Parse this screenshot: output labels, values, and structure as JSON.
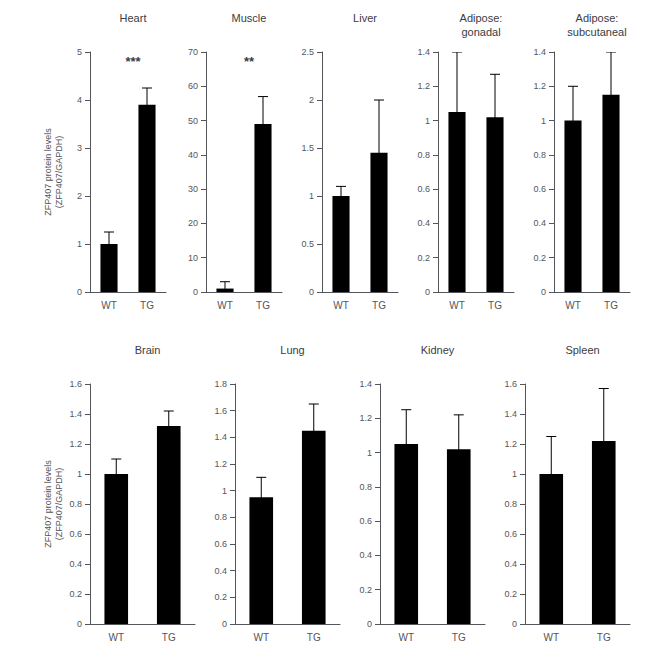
{
  "chart_data": [
    {
      "type": "bar",
      "title": "Heart",
      "categories": [
        "WT",
        "TG"
      ],
      "values": [
        1.0,
        3.9
      ],
      "errors": [
        0.25,
        0.35
      ],
      "ylim": [
        0,
        5
      ],
      "yticks": [
        0,
        1,
        2,
        3,
        4,
        5
      ],
      "color": "#000000",
      "grid": false,
      "annotation": "***",
      "ylabel": "ZFP407 protein levels\n(ZFP407/GAPDH)"
    },
    {
      "type": "bar",
      "title": "Muscle",
      "categories": [
        "WT",
        "TG"
      ],
      "values": [
        1.0,
        49.0
      ],
      "errors": [
        2.0,
        8.0
      ],
      "ylim": [
        0,
        70
      ],
      "yticks": [
        0,
        10,
        20,
        30,
        40,
        50,
        60,
        70
      ],
      "color": "#000000",
      "grid": false,
      "annotation": "**"
    },
    {
      "type": "bar",
      "title": "Liver",
      "categories": [
        "WT",
        "TG"
      ],
      "values": [
        1.0,
        1.45
      ],
      "errors": [
        0.1,
        0.55
      ],
      "ylim": [
        0,
        2.5
      ],
      "yticks": [
        0,
        0.5,
        1,
        1.5,
        2,
        2.5
      ],
      "color": "#000000",
      "grid": false
    },
    {
      "type": "bar",
      "title": "Adipose:\ngonadal",
      "categories": [
        "WT",
        "TG"
      ],
      "values": [
        1.05,
        1.02
      ],
      "errors": [
        0.35,
        0.25
      ],
      "ylim": [
        0,
        1.4
      ],
      "yticks": [
        0,
        0.2,
        0.4,
        0.6,
        0.8,
        1,
        1.2,
        1.4
      ],
      "color": "#000000",
      "grid": false
    },
    {
      "type": "bar",
      "title": "Adipose:\nsubcutaneal",
      "categories": [
        "WT",
        "TG"
      ],
      "values": [
        1.0,
        1.15
      ],
      "errors": [
        0.2,
        0.25
      ],
      "ylim": [
        0,
        1.4
      ],
      "yticks": [
        0,
        0.2,
        0.4,
        0.6,
        0.8,
        1,
        1.2,
        1.4
      ],
      "color": "#000000",
      "grid": false
    },
    {
      "type": "bar",
      "title": "Brain",
      "categories": [
        "WT",
        "TG"
      ],
      "values": [
        1.0,
        1.32
      ],
      "errors": [
        0.1,
        0.1
      ],
      "ylim": [
        0,
        1.6
      ],
      "yticks": [
        0,
        0.2,
        0.4,
        0.6,
        0.8,
        1,
        1.2,
        1.4,
        1.6
      ],
      "color": "#000000",
      "grid": false,
      "ylabel": "ZFP407 protein levels\n(ZFP407/GAPDH)"
    },
    {
      "type": "bar",
      "title": "Lung",
      "categories": [
        "WT",
        "TG"
      ],
      "values": [
        0.95,
        1.45
      ],
      "errors": [
        0.15,
        0.2
      ],
      "ylim": [
        0,
        1.8
      ],
      "yticks": [
        0,
        0.2,
        0.4,
        0.6,
        0.8,
        1,
        1.2,
        1.4,
        1.6,
        1.8
      ],
      "color": "#000000",
      "grid": false
    },
    {
      "type": "bar",
      "title": "Kidney",
      "categories": [
        "WT",
        "TG"
      ],
      "values": [
        1.05,
        1.02
      ],
      "errors": [
        0.2,
        0.2
      ],
      "ylim": [
        0,
        1.4
      ],
      "yticks": [
        0,
        0.2,
        0.4,
        0.6,
        0.8,
        1,
        1.2,
        1.4
      ],
      "color": "#000000",
      "grid": false
    },
    {
      "type": "bar",
      "title": "Spleen",
      "categories": [
        "WT",
        "TG"
      ],
      "values": [
        1.0,
        1.22
      ],
      "errors": [
        0.25,
        0.35
      ],
      "ylim": [
        0,
        1.6
      ],
      "yticks": [
        0,
        0.2,
        0.4,
        0.6,
        0.8,
        1,
        1.2,
        1.4,
        1.6
      ],
      "color": "#000000",
      "grid": false
    }
  ]
}
